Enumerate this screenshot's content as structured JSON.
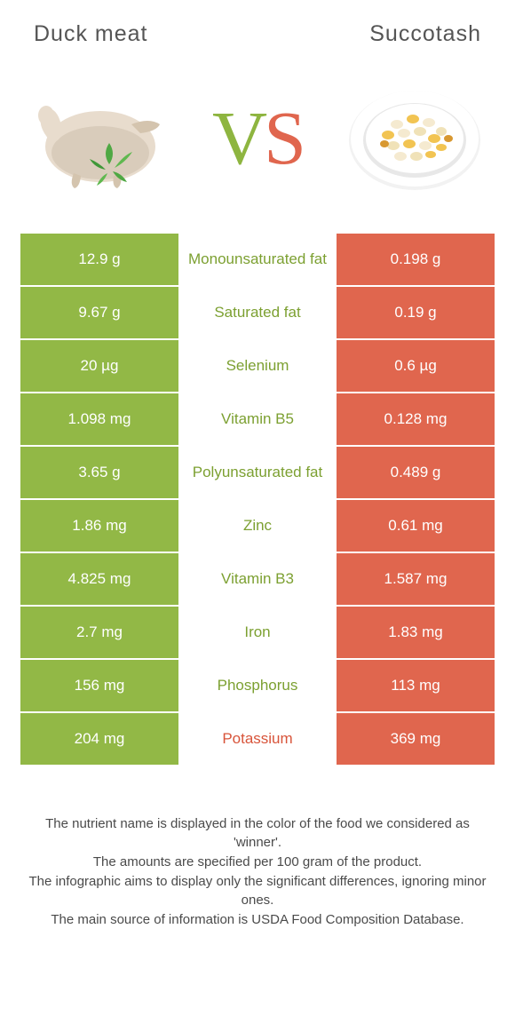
{
  "colors": {
    "green": "#92b846",
    "orange": "#e0664e",
    "green_text": "#7ca031",
    "orange_text": "#d8543a",
    "body_text": "#4a4a4a",
    "white": "#ffffff",
    "duck_body": "#e8dccd",
    "duck_shadow": "#c9bca9",
    "leaf": "#4fa843",
    "plate_rim": "#e8e8e8",
    "corn1": "#f2c452",
    "corn2": "#f0e2b8",
    "bean": "#f5ead0"
  },
  "header": {
    "left": "Duck meat",
    "right": "Succotash"
  },
  "vs": {
    "v": "V",
    "s": "S"
  },
  "rows": [
    {
      "left": "12.9 g",
      "mid": "Monounsaturated fat",
      "right": "0.198 g",
      "winner": "left"
    },
    {
      "left": "9.67 g",
      "mid": "Saturated fat",
      "right": "0.19 g",
      "winner": "left"
    },
    {
      "left": "20 µg",
      "mid": "Selenium",
      "right": "0.6 µg",
      "winner": "left"
    },
    {
      "left": "1.098 mg",
      "mid": "Vitamin B5",
      "right": "0.128 mg",
      "winner": "left"
    },
    {
      "left": "3.65 g",
      "mid": "Polyunsaturated fat",
      "right": "0.489 g",
      "winner": "left"
    },
    {
      "left": "1.86 mg",
      "mid": "Zinc",
      "right": "0.61 mg",
      "winner": "left"
    },
    {
      "left": "4.825 mg",
      "mid": "Vitamin B3",
      "right": "1.587 mg",
      "winner": "left"
    },
    {
      "left": "2.7 mg",
      "mid": "Iron",
      "right": "1.83 mg",
      "winner": "left"
    },
    {
      "left": "156 mg",
      "mid": "Phosphorus",
      "right": "113 mg",
      "winner": "left"
    },
    {
      "left": "204 mg",
      "mid": "Potassium",
      "right": "369 mg",
      "winner": "right"
    }
  ],
  "footer": {
    "line1": "The nutrient name is displayed in the color of the food we considered as 'winner'.",
    "line2": "The amounts are specified per 100 gram of the product.",
    "line3": "The infographic aims to display only the significant differences, ignoring minor ones.",
    "line4": "The main source of information is USDA Food Composition Database."
  }
}
